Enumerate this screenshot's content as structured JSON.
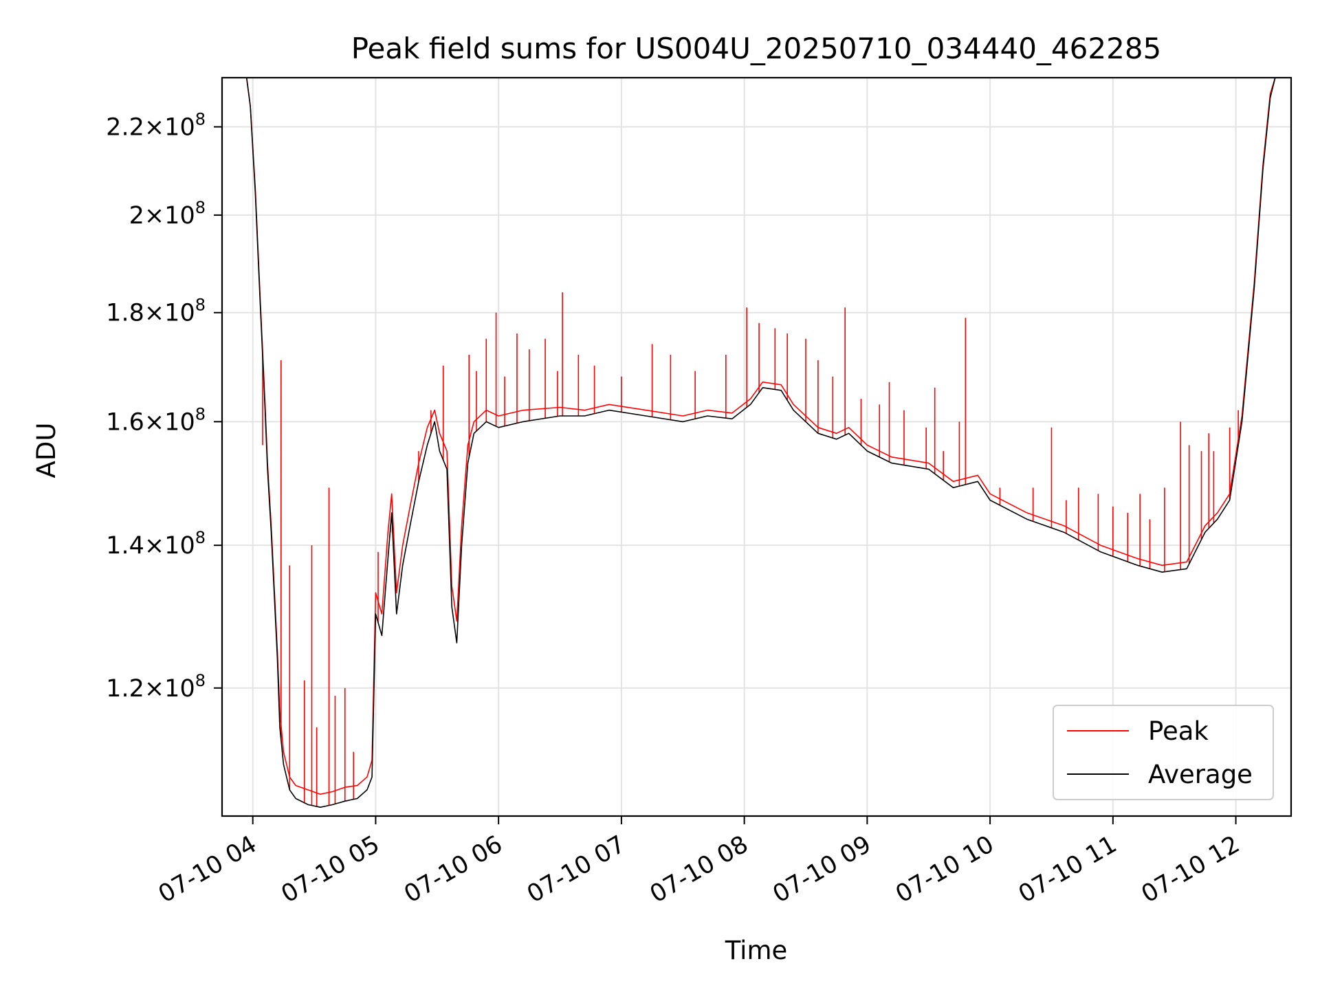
{
  "chart_data": {
    "type": "line",
    "title": "Peak field sums for US004U_20250710_034440_462285",
    "xlabel": "Time",
    "ylabel": "ADU",
    "x_unit": "hours (time of day, 2025-07-10)",
    "xlim": [
      3.75,
      12.45
    ],
    "ylim": [
      104500000.0,
      232000000.0
    ],
    "yscale": "log",
    "grid": true,
    "legend_position": "lower-right",
    "x_ticks": [
      {
        "value": 4,
        "label": "07-10 04"
      },
      {
        "value": 5,
        "label": "07-10 05"
      },
      {
        "value": 6,
        "label": "07-10 06"
      },
      {
        "value": 7,
        "label": "07-10 07"
      },
      {
        "value": 8,
        "label": "07-10 08"
      },
      {
        "value": 9,
        "label": "07-10 09"
      },
      {
        "value": 10,
        "label": "07-10 10"
      },
      {
        "value": 11,
        "label": "07-10 11"
      },
      {
        "value": 12,
        "label": "07-10 12"
      }
    ],
    "y_ticks": [
      {
        "value": 120000000.0,
        "mantissa": "1.2",
        "exp": "8"
      },
      {
        "value": 140000000.0,
        "mantissa": "1.4",
        "exp": "8"
      },
      {
        "value": 160000000.0,
        "mantissa": "1.6",
        "exp": "8"
      },
      {
        "value": 180000000.0,
        "mantissa": "1.8",
        "exp": "8"
      },
      {
        "value": 200000000.0,
        "mantissa": "2",
        "exp": "8"
      },
      {
        "value": 220000000.0,
        "mantissa": "2.2",
        "exp": "8"
      }
    ],
    "series": [
      {
        "name": "Average",
        "color": "#000000",
        "x": [
          3.75,
          3.9,
          3.95,
          3.98,
          4.02,
          4.06,
          4.1,
          4.12,
          4.15,
          4.2,
          4.22,
          4.25,
          4.3,
          4.35,
          4.45,
          4.55,
          4.65,
          4.75,
          4.85,
          4.93,
          4.97,
          5.0,
          5.05,
          5.1,
          5.13,
          5.17,
          5.22,
          5.28,
          5.35,
          5.42,
          5.48,
          5.52,
          5.58,
          5.62,
          5.66,
          5.7,
          5.75,
          5.8,
          5.9,
          6.0,
          6.2,
          6.5,
          6.7,
          6.9,
          7.2,
          7.5,
          7.7,
          7.9,
          8.05,
          8.15,
          8.3,
          8.4,
          8.6,
          8.75,
          8.85,
          9.0,
          9.2,
          9.5,
          9.7,
          9.9,
          10.0,
          10.3,
          10.6,
          10.9,
          11.2,
          11.4,
          11.6,
          11.75,
          11.85,
          11.95,
          12.05,
          12.15,
          12.22,
          12.28,
          12.32,
          12.45
        ],
        "y": [
          232000000.0,
          232000000.0,
          232000000.0,
          225000000.0,
          205000000.0,
          182000000.0,
          162000000.0,
          152000000.0,
          142000000.0,
          124000000.0,
          115000000.0,
          110500000.0,
          107500000.0,
          106500000.0,
          105800000.0,
          105500000.0,
          105800000.0,
          106200000.0,
          106500000.0,
          107500000.0,
          109000000.0,
          130000000.0,
          127000000.0,
          138000000.0,
          145000000.0,
          130000000.0,
          137000000.0,
          143000000.0,
          150000000.0,
          156000000.0,
          160000000.0,
          155000000.0,
          152000000.0,
          131000000.0,
          126000000.0,
          140000000.0,
          153000000.0,
          158000000.0,
          160000000.0,
          159000000.0,
          160000000.0,
          161000000.0,
          161000000.0,
          162000000.0,
          161000000.0,
          160000000.0,
          161000000.0,
          160500000.0,
          163000000.0,
          166000000.0,
          165500000.0,
          162000000.0,
          158000000.0,
          157000000.0,
          158000000.0,
          155000000.0,
          153000000.0,
          152000000.0,
          149000000.0,
          150000000.0,
          147000000.0,
          144000000.0,
          142000000.0,
          139000000.0,
          137000000.0,
          136000000.0,
          136500000.0,
          142000000.0,
          144000000.0,
          147000000.0,
          160000000.0,
          185000000.0,
          210000000.0,
          227000000.0,
          232000000.0,
          232000000.0
        ]
      },
      {
        "name": "Peak",
        "color": "#ff0000",
        "x": [
          3.75,
          3.9,
          3.95,
          3.98,
          4.02,
          4.06,
          4.1,
          4.12,
          4.15,
          4.2,
          4.22,
          4.25,
          4.3,
          4.35,
          4.45,
          4.55,
          4.65,
          4.75,
          4.85,
          4.93,
          4.97,
          5.0,
          5.05,
          5.1,
          5.13,
          5.17,
          5.22,
          5.28,
          5.35,
          5.42,
          5.48,
          5.52,
          5.58,
          5.62,
          5.66,
          5.7,
          5.75,
          5.8,
          5.9,
          6.0,
          6.2,
          6.5,
          6.7,
          6.9,
          7.2,
          7.5,
          7.7,
          7.9,
          8.05,
          8.15,
          8.3,
          8.4,
          8.6,
          8.75,
          8.85,
          9.0,
          9.2,
          9.5,
          9.7,
          9.9,
          10.0,
          10.3,
          10.6,
          10.9,
          11.2,
          11.4,
          11.6,
          11.75,
          11.85,
          11.95,
          12.05,
          12.15,
          12.22,
          12.28,
          12.32,
          12.45
        ],
        "y": [
          232000000.0,
          232000000.0,
          232000000.0,
          225000000.0,
          206000000.0,
          183000000.0,
          163000000.0,
          153000000.0,
          143000000.0,
          125000000.0,
          117000000.0,
          112000000.0,
          109000000.0,
          108000000.0,
          107500000.0,
          107000000.0,
          107300000.0,
          107800000.0,
          108000000.0,
          109000000.0,
          111000000.0,
          133000000.0,
          130000000.0,
          142000000.0,
          148000000.0,
          133000000.0,
          140000000.0,
          146000000.0,
          153000000.0,
          159000000.0,
          162000000.0,
          158000000.0,
          155000000.0,
          134000000.0,
          129000000.0,
          143000000.0,
          156000000.0,
          160000000.0,
          162000000.0,
          161000000.0,
          162000000.0,
          162500000.0,
          162000000.0,
          163000000.0,
          162000000.0,
          161000000.0,
          162000000.0,
          161500000.0,
          164000000.0,
          167000000.0,
          166500000.0,
          163000000.0,
          159000000.0,
          158000000.0,
          159000000.0,
          156000000.0,
          154000000.0,
          153000000.0,
          150000000.0,
          151000000.0,
          148000000.0,
          145000000.0,
          143000000.0,
          140000000.0,
          138000000.0,
          137000000.0,
          137500000.0,
          143000000.0,
          145000000.0,
          148000000.0,
          161000000.0,
          186000000.0,
          211000000.0,
          228000000.0,
          232000000.0,
          232000000.0
        ]
      }
    ],
    "peak_spikes": {
      "x": [
        4.08,
        4.23,
        4.3,
        4.42,
        4.48,
        4.52,
        4.62,
        4.67,
        4.75,
        4.82,
        5.02,
        5.12,
        5.35,
        5.45,
        5.55,
        5.76,
        5.82,
        5.9,
        5.98,
        6.05,
        6.15,
        6.25,
        6.38,
        6.48,
        6.52,
        6.65,
        6.78,
        7.0,
        7.25,
        7.4,
        7.6,
        7.85,
        8.02,
        8.12,
        8.25,
        8.35,
        8.5,
        8.6,
        8.72,
        8.82,
        8.95,
        9.1,
        9.18,
        9.3,
        9.48,
        9.55,
        9.62,
        9.75,
        9.8,
        10.08,
        10.35,
        10.5,
        10.62,
        10.72,
        10.88,
        11.0,
        11.12,
        11.22,
        11.3,
        11.42,
        11.55,
        11.62,
        11.72,
        11.78,
        11.82,
        11.95,
        12.02
      ],
      "y": [
        156000000.0,
        171000000.0,
        137000000.0,
        121000000.0,
        140000000.0,
        115000000.0,
        149000000.0,
        119000000.0,
        120000000.0,
        112000000.0,
        139000000.0,
        142000000.0,
        155000000.0,
        162000000.0,
        170000000.0,
        172000000.0,
        169000000.0,
        175000000.0,
        180000000.0,
        168000000.0,
        176000000.0,
        173000000.0,
        175000000.0,
        169000000.0,
        184000000.0,
        172000000.0,
        170000000.0,
        168000000.0,
        174000000.0,
        172000000.0,
        169000000.0,
        172000000.0,
        181000000.0,
        178000000.0,
        177000000.0,
        176000000.0,
        175000000.0,
        171000000.0,
        168000000.0,
        181000000.0,
        164000000.0,
        163000000.0,
        167000000.0,
        162000000.0,
        159000000.0,
        166000000.0,
        155000000.0,
        160000000.0,
        179000000.0,
        149000000.0,
        149000000.0,
        159000000.0,
        147000000.0,
        149000000.0,
        148000000.0,
        146000000.0,
        145000000.0,
        148000000.0,
        144000000.0,
        149000000.0,
        160000000.0,
        156000000.0,
        155000000.0,
        158000000.0,
        155000000.0,
        159000000.0,
        162000000.0
      ]
    }
  }
}
